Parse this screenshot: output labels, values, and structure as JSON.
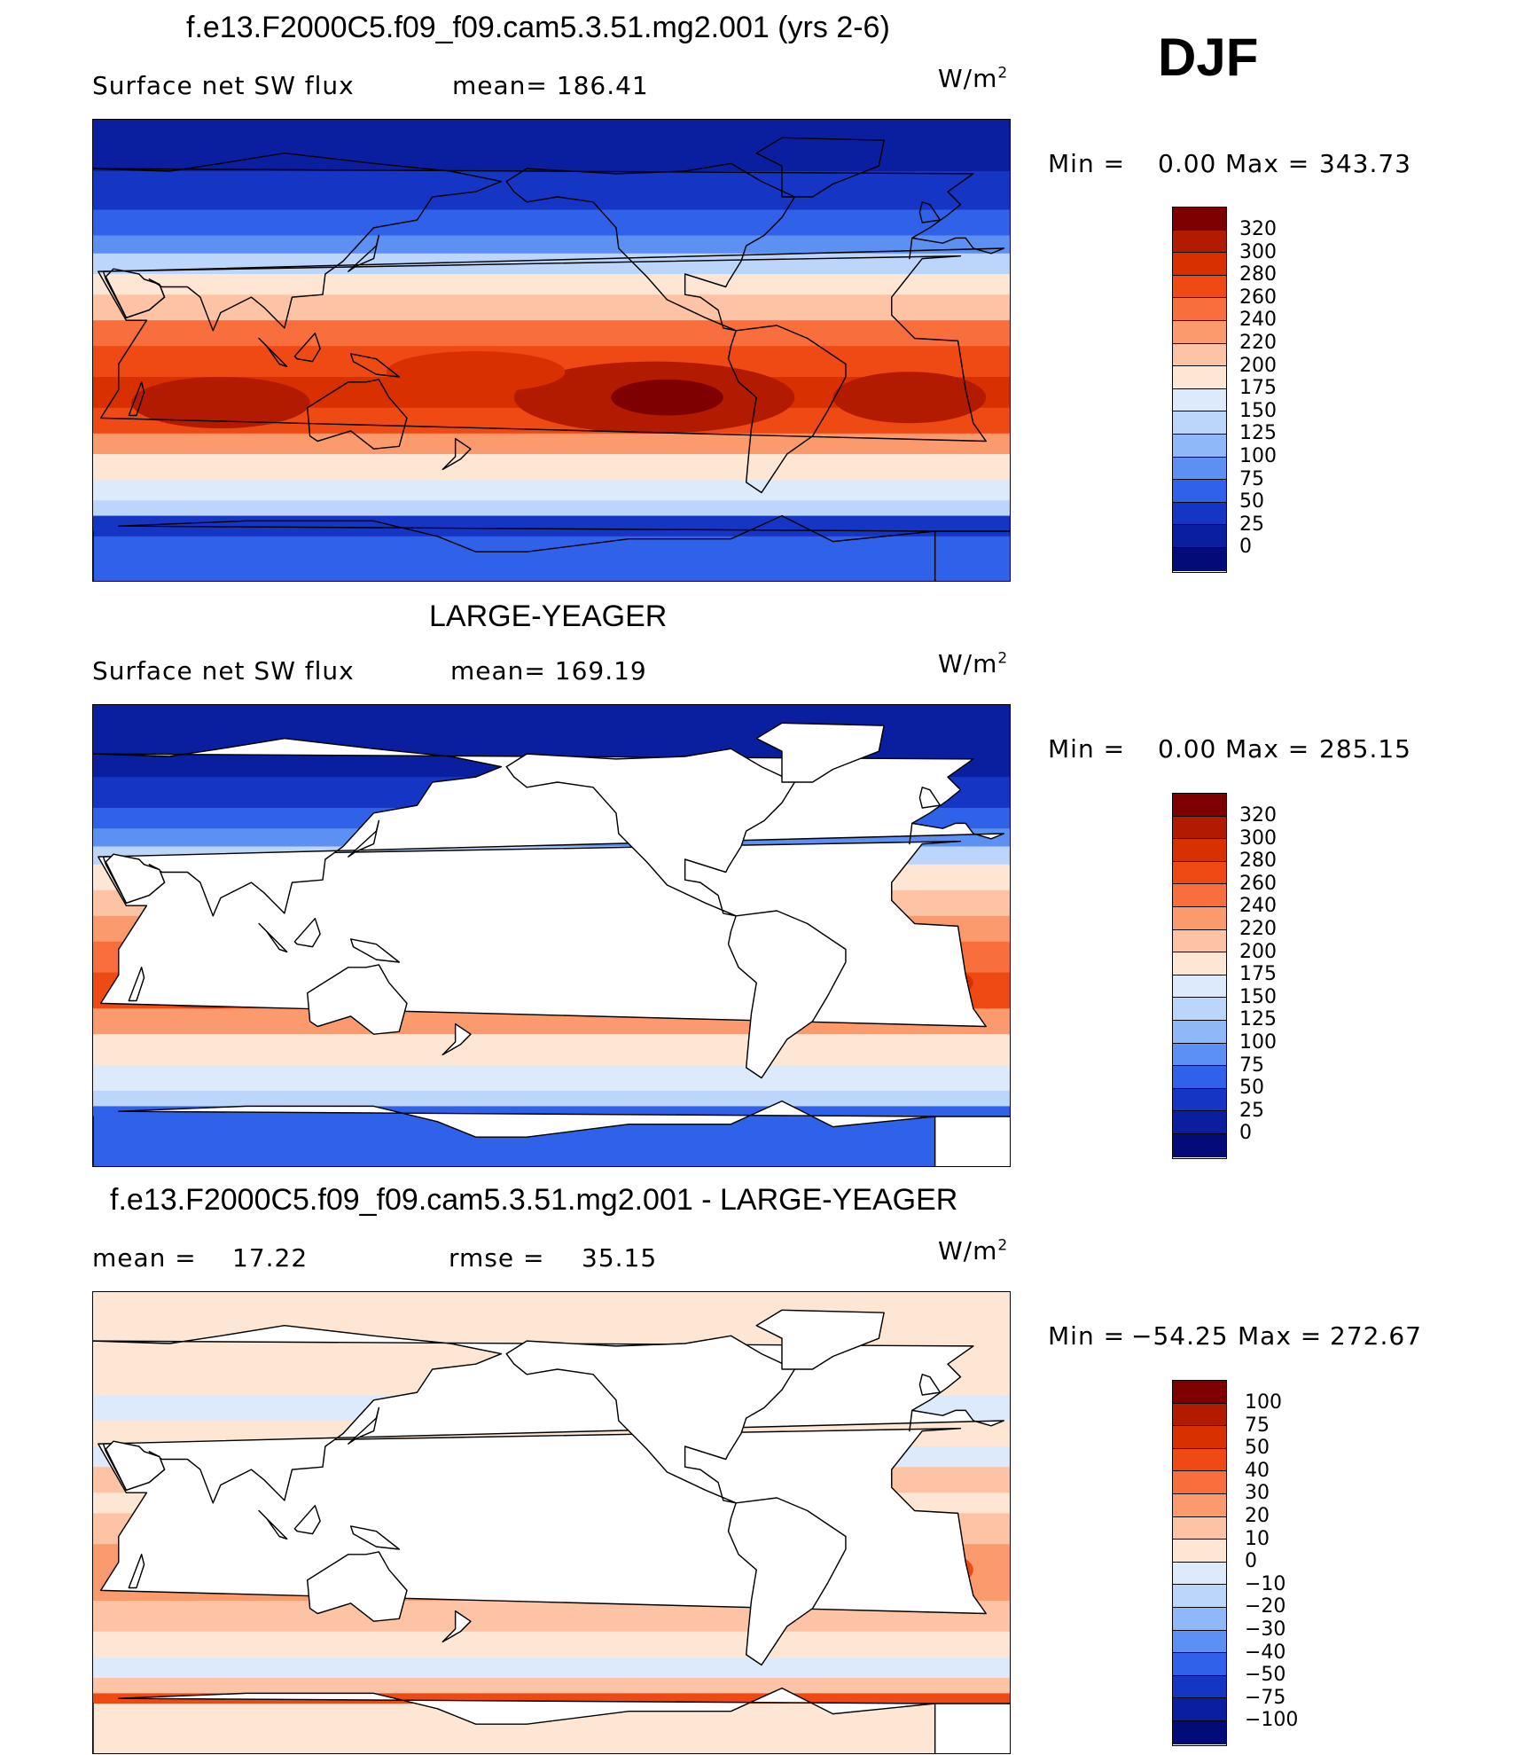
{
  "season": "DJF",
  "panels": [
    {
      "title": "f.e13.F2000C5.f09_f09.cam5.3.51.mg2.001 (yrs 2-6)",
      "left_label": "Surface net SW flux",
      "stat1": "mean=  186.41",
      "stat2": "",
      "units": "W/m",
      "units_exp": "2",
      "min_label": "Min  =",
      "min_value": "0.00",
      "max_label": "Max  =",
      "max_value": "343.73",
      "colorbar": {
        "ticks": [
          "320",
          "300",
          "280",
          "260",
          "240",
          "220",
          "200",
          "175",
          "150",
          "125",
          "100",
          "75",
          "50",
          "25",
          "0"
        ],
        "colors": [
          "#7f0000",
          "#b31b00",
          "#d93000",
          "#ef4a14",
          "#f86e3c",
          "#fb9a6c",
          "#fcc4a4",
          "#fde7d4",
          "#dceafc",
          "#bcd6fb",
          "#8fb8f8",
          "#5c90f2",
          "#2f62e8",
          "#1536c4",
          "#0a1fa0",
          "#020b78"
        ]
      },
      "lat_bands": [
        {
          "lat": 90,
          "color": "#0a1fa0"
        },
        {
          "lat": 70,
          "color": "#1536c4"
        },
        {
          "lat": 55,
          "color": "#2f62e8"
        },
        {
          "lat": 45,
          "color": "#5c90f2"
        },
        {
          "lat": 38,
          "color": "#bcd6fb"
        },
        {
          "lat": 30,
          "color": "#fde7d4"
        },
        {
          "lat": 22,
          "color": "#fcc4a4"
        },
        {
          "lat": 12,
          "color": "#f86e3c"
        },
        {
          "lat": 2,
          "color": "#ef4a14"
        },
        {
          "lat": -10,
          "color": "#d93000"
        },
        {
          "lat": -22,
          "color": "#ef4a14"
        },
        {
          "lat": -32,
          "color": "#fb9a6c"
        },
        {
          "lat": -40,
          "color": "#fde7d4"
        },
        {
          "lat": -50,
          "color": "#dceafc"
        },
        {
          "lat": -58,
          "color": "#bcd6fb"
        },
        {
          "lat": -64,
          "color": "#1536c4"
        },
        {
          "lat": -72,
          "color": "#2f62e8"
        }
      ],
      "hotspots": [
        {
          "lon": 250,
          "lat": -18,
          "rx": 55,
          "ry": 14,
          "color": "#b31b00"
        },
        {
          "lon": 255,
          "lat": -18,
          "rx": 22,
          "ry": 7,
          "color": "#7f0000"
        },
        {
          "lon": 350,
          "lat": -18,
          "rx": 30,
          "ry": 10,
          "color": "#b31b00"
        },
        {
          "lon": 80,
          "lat": -20,
          "rx": 35,
          "ry": 10,
          "color": "#b31b00"
        },
        {
          "lon": 180,
          "lat": -8,
          "rx": 35,
          "ry": 8,
          "color": "#d93000"
        }
      ],
      "land_fill": ""
    },
    {
      "title": "LARGE-YEAGER",
      "left_label": "Surface net SW flux",
      "stat1": "mean=  169.19",
      "stat2": "",
      "units": "W/m",
      "units_exp": "2",
      "min_label": "Min  =",
      "min_value": "0.00",
      "max_label": "Max  =",
      "max_value": "285.15",
      "colorbar": {
        "ticks": [
          "320",
          "300",
          "280",
          "260",
          "240",
          "220",
          "200",
          "175",
          "150",
          "125",
          "100",
          "75",
          "50",
          "25",
          "0"
        ],
        "colors": [
          "#7f0000",
          "#b31b00",
          "#d93000",
          "#ef4a14",
          "#f86e3c",
          "#fb9a6c",
          "#fcc4a4",
          "#fde7d4",
          "#dceafc",
          "#bcd6fb",
          "#8fb8f8",
          "#5c90f2",
          "#2f62e8",
          "#1536c4",
          "#0a1fa0",
          "#020b78"
        ]
      },
      "lat_bands": [
        {
          "lat": 90,
          "color": "#0a1fa0"
        },
        {
          "lat": 62,
          "color": "#1536c4"
        },
        {
          "lat": 50,
          "color": "#2f62e8"
        },
        {
          "lat": 42,
          "color": "#5c90f2"
        },
        {
          "lat": 35,
          "color": "#bcd6fb"
        },
        {
          "lat": 28,
          "color": "#fde7d4"
        },
        {
          "lat": 18,
          "color": "#fcc4a4"
        },
        {
          "lat": 8,
          "color": "#fb9a6c"
        },
        {
          "lat": -2,
          "color": "#f86e3c"
        },
        {
          "lat": -14,
          "color": "#ef4a14"
        },
        {
          "lat": -28,
          "color": "#fb9a6c"
        },
        {
          "lat": -38,
          "color": "#fde7d4"
        },
        {
          "lat": -50,
          "color": "#dceafc"
        },
        {
          "lat": -60,
          "color": "#bcd6fb"
        },
        {
          "lat": -66,
          "color": "#2f62e8"
        }
      ],
      "hotspots": [
        {
          "lon": 255,
          "lat": -20,
          "rx": 40,
          "ry": 9,
          "color": "#d93000"
        },
        {
          "lon": 350,
          "lat": -18,
          "rx": 25,
          "ry": 8,
          "color": "#d93000"
        },
        {
          "lon": 75,
          "lat": -20,
          "rx": 28,
          "ry": 8,
          "color": "#d93000"
        }
      ],
      "land_fill": "#ffffff"
    },
    {
      "title": "f.e13.F2000C5.f09_f09.cam5.3.51.mg2.001 - LARGE-YEAGER",
      "left_label": "mean  =",
      "left_value": "17.22",
      "stat1": "rmse  =",
      "stat2": "35.15",
      "units": "W/m",
      "units_exp": "2",
      "min_label": "Min  =",
      "min_value": "−54.25",
      "max_label": "Max  =",
      "max_value": "272.67",
      "colorbar": {
        "ticks": [
          "100",
          "75",
          "50",
          "40",
          "30",
          "20",
          "10",
          "0",
          "−10",
          "−20",
          "−30",
          "−40",
          "−50",
          "−75",
          "−100"
        ],
        "colors": [
          "#7f0000",
          "#b31b00",
          "#d93000",
          "#ef4a14",
          "#f86e3c",
          "#fb9a6c",
          "#fcc4a4",
          "#fde7d4",
          "#dceafc",
          "#bcd6fb",
          "#8fb8f8",
          "#5c90f2",
          "#2f62e8",
          "#1536c4",
          "#0a1fa0",
          "#020b78"
        ]
      },
      "lat_bands": [
        {
          "lat": 90,
          "color": "#fde7d4"
        },
        {
          "lat": 50,
          "color": "#dceafc"
        },
        {
          "lat": 40,
          "color": "#fde7d4"
        },
        {
          "lat": 30,
          "color": "#dceafc"
        },
        {
          "lat": 22,
          "color": "#fcc4a4"
        },
        {
          "lat": 12,
          "color": "#fde7d4"
        },
        {
          "lat": 4,
          "color": "#fcc4a4"
        },
        {
          "lat": -8,
          "color": "#fb9a6c"
        },
        {
          "lat": -30,
          "color": "#fcc4a4"
        },
        {
          "lat": -42,
          "color": "#fde7d4"
        },
        {
          "lat": -52,
          "color": "#dceafc"
        },
        {
          "lat": -60,
          "color": "#fcc4a4"
        },
        {
          "lat": -66,
          "color": "#ef4a14"
        },
        {
          "lat": -70,
          "color": "#fde7d4"
        }
      ],
      "hotspots": [
        {
          "lon": 255,
          "lat": -18,
          "rx": 40,
          "ry": 10,
          "color": "#ef4a14"
        },
        {
          "lon": 350,
          "lat": -18,
          "rx": 25,
          "ry": 9,
          "color": "#ef4a14"
        },
        {
          "lon": 180,
          "lat": -8,
          "rx": 30,
          "ry": 6,
          "color": "#f86e3c"
        },
        {
          "lon": 100,
          "lat": -20,
          "rx": 20,
          "ry": 8,
          "color": "#f86e3c"
        }
      ],
      "land_fill": "#ffffff"
    }
  ]
}
